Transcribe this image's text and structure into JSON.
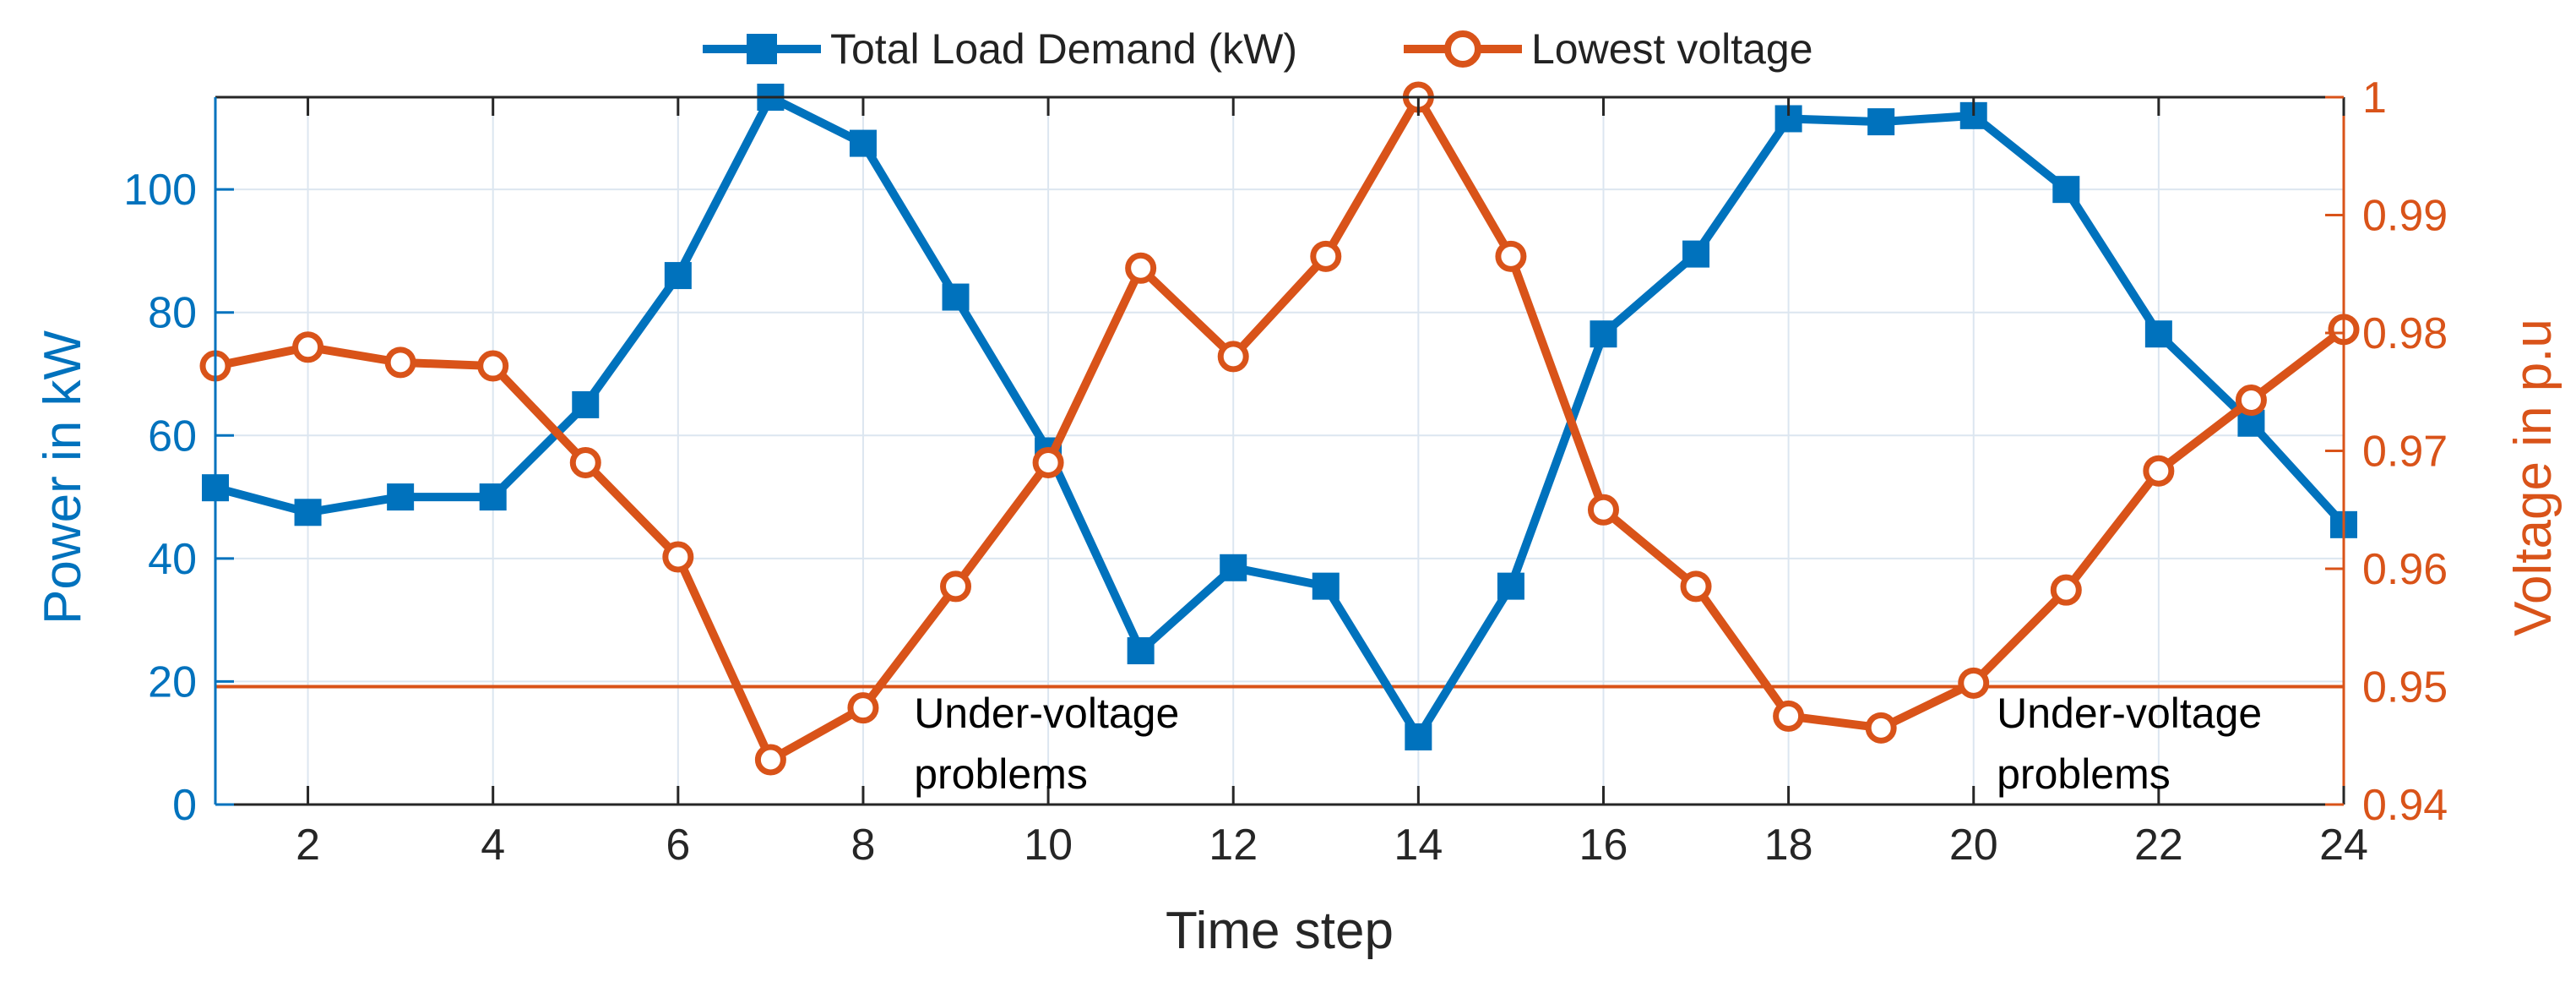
{
  "chart_data": {
    "type": "line",
    "title": "",
    "xlabel": "Time step",
    "ylabel_left": "Power in kW",
    "ylabel_right": "Voltage in p.u",
    "x": [
      1,
      2,
      3,
      4,
      5,
      6,
      7,
      8,
      9,
      10,
      11,
      12,
      13,
      14,
      15,
      16,
      17,
      18,
      19,
      20,
      21,
      22,
      23,
      24
    ],
    "xlim": [
      1,
      24
    ],
    "xticks": [
      2,
      4,
      6,
      8,
      10,
      12,
      14,
      16,
      18,
      20,
      22,
      24
    ],
    "ylim_left": [
      0,
      115
    ],
    "yticks_left": [
      0,
      20,
      40,
      60,
      80,
      100
    ],
    "ylim_right": [
      0.94,
      1.0
    ],
    "yticks_right": [
      0.94,
      0.95,
      0.96,
      0.97,
      0.98,
      0.99,
      1
    ],
    "grid": true,
    "legend_position": "top-outside",
    "series": [
      {
        "name": "Total Load Demand (kW)",
        "axis": "left",
        "marker": "square",
        "color": "#0072BD",
        "values": [
          51.5,
          47.5,
          50,
          50,
          65,
          86,
          115,
          107.5,
          82.5,
          57.5,
          25,
          38.5,
          35.5,
          11,
          35.5,
          76.5,
          89.5,
          111.5,
          111,
          112,
          100,
          76.5,
          62,
          45.5
        ]
      },
      {
        "name": "Lowest voltage",
        "axis": "right",
        "marker": "circle",
        "color": "#D95319",
        "values": [
          0.9772,
          0.9788,
          0.9775,
          0.9772,
          0.969,
          0.961,
          0.9438,
          0.9482,
          0.9585,
          0.969,
          0.9855,
          0.978,
          0.9865,
          1.0,
          0.9865,
          0.965,
          0.9585,
          0.9475,
          0.9465,
          0.9503,
          0.9582,
          0.9683,
          0.9743,
          0.9803
        ]
      }
    ],
    "threshold": {
      "axis": "right",
      "value": 0.95,
      "color": "#D95319"
    },
    "annotations": [
      {
        "text_lines": [
          "Under-voltage",
          "problems"
        ],
        "x": 8.55,
        "y_left": 12.5
      },
      {
        "text_lines": [
          "Under-voltage",
          "problems"
        ],
        "x": 20.25,
        "y_left": 12.5
      }
    ],
    "colors": {
      "left_axis": "#0072BD",
      "right_axis": "#D95319",
      "frame": "#262626",
      "grid": "#DCE6F0"
    }
  }
}
